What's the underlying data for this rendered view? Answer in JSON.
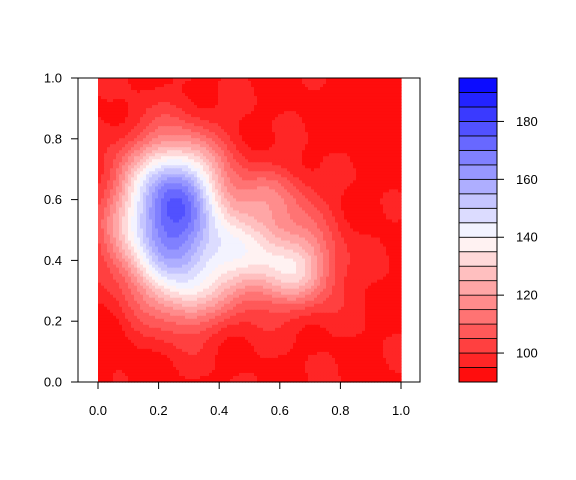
{
  "chart_data": {
    "type": "heatmap",
    "subtype": "filled-contour",
    "title": "",
    "xlabel": "",
    "ylabel": "",
    "xlim": [
      -0.08,
      1.08
    ],
    "ylim": [
      0.0,
      1.0
    ],
    "x_ticks": [
      "0.0",
      "0.2",
      "0.4",
      "0.6",
      "0.8",
      "1.0"
    ],
    "x_tick_values": [
      0.0,
      0.2,
      0.4,
      0.6,
      0.8,
      1.0
    ],
    "y_ticks": [
      "0.0",
      "0.2",
      "0.4",
      "0.6",
      "0.8",
      "1.0"
    ],
    "y_tick_values": [
      0.0,
      0.2,
      0.4,
      0.6,
      0.8,
      1.0
    ],
    "grid": false,
    "legend_position": "right",
    "colorbar": {
      "min": 90,
      "max": 195,
      "step": 5,
      "tick_labels": [
        "100",
        "120",
        "140",
        "160",
        "180"
      ],
      "tick_values": [
        100,
        120,
        140,
        160,
        180
      ],
      "low_color": "#ff0000",
      "mid_color": "#ffffff",
      "mid_value": 140,
      "high_color": "#0000ff"
    },
    "field_description": "Values peak near 190 around (0.22, 0.5), exceed 150 in a region extending to (0.7, 0.35), fall below 100 near the corners (1.0, 0.9) and (0.0, 0.2).",
    "blobs": [
      {
        "x": 0.22,
        "y": 0.5,
        "sx": 0.12,
        "sy": 0.16,
        "amp": 62
      },
      {
        "x": 0.27,
        "y": 0.66,
        "sx": 0.1,
        "sy": 0.11,
        "amp": 34
      },
      {
        "x": 0.48,
        "y": 0.42,
        "sx": 0.14,
        "sy": 0.11,
        "amp": 36
      },
      {
        "x": 0.67,
        "y": 0.37,
        "sx": 0.09,
        "sy": 0.09,
        "amp": 24
      },
      {
        "x": 0.58,
        "y": 0.61,
        "sx": 0.1,
        "sy": 0.07,
        "amp": 14
      },
      {
        "x": 0.3,
        "y": 0.27,
        "sx": 0.07,
        "sy": 0.08,
        "amp": 14
      }
    ],
    "base": 94
  }
}
